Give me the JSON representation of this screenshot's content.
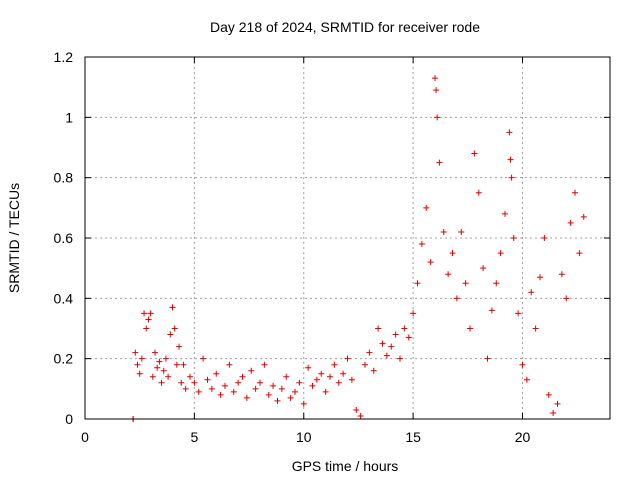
{
  "chart_data": {
    "type": "scatter",
    "title": "Day 218 of 2024, SRMTID for receiver rode",
    "xlabel": "GPS time / hours",
    "ylabel": "SRMTID / TECUs",
    "xlim": [
      0,
      24
    ],
    "ylim": [
      0,
      1.2
    ],
    "xticks": [
      "0",
      "5",
      "10",
      "15",
      "20"
    ],
    "xtick_values": [
      0,
      5,
      10,
      15,
      20
    ],
    "yticks": [
      "0",
      "0.2",
      "0.4",
      "0.6",
      "0.8",
      "1",
      "1.2"
    ],
    "ytick_values": [
      0,
      0.2,
      0.4,
      0.6,
      0.8,
      1.0,
      1.2
    ],
    "grid": true,
    "marker": "plus",
    "color": "#e00000",
    "series": [
      {
        "name": "SRMTID",
        "points": [
          [
            2.2,
            0.0
          ],
          [
            2.2,
            0.0
          ],
          [
            2.3,
            0.22
          ],
          [
            2.4,
            0.18
          ],
          [
            2.5,
            0.15
          ],
          [
            2.6,
            0.2
          ],
          [
            2.7,
            0.35
          ],
          [
            2.8,
            0.3
          ],
          [
            2.9,
            0.33
          ],
          [
            3.0,
            0.35
          ],
          [
            3.1,
            0.14
          ],
          [
            3.2,
            0.22
          ],
          [
            3.3,
            0.17
          ],
          [
            3.4,
            0.19
          ],
          [
            3.5,
            0.12
          ],
          [
            3.6,
            0.16
          ],
          [
            3.7,
            0.2
          ],
          [
            3.8,
            0.14
          ],
          [
            3.9,
            0.28
          ],
          [
            4.0,
            0.37
          ],
          [
            4.1,
            0.3
          ],
          [
            4.2,
            0.18
          ],
          [
            4.3,
            0.24
          ],
          [
            4.4,
            0.12
          ],
          [
            4.5,
            0.18
          ],
          [
            4.6,
            0.1
          ],
          [
            4.8,
            0.14
          ],
          [
            5.0,
            0.12
          ],
          [
            5.2,
            0.09
          ],
          [
            5.4,
            0.2
          ],
          [
            5.6,
            0.13
          ],
          [
            5.8,
            0.1
          ],
          [
            6.0,
            0.15
          ],
          [
            6.2,
            0.08
          ],
          [
            6.4,
            0.11
          ],
          [
            6.6,
            0.18
          ],
          [
            6.8,
            0.09
          ],
          [
            7.0,
            0.12
          ],
          [
            7.2,
            0.14
          ],
          [
            7.4,
            0.07
          ],
          [
            7.6,
            0.16
          ],
          [
            7.8,
            0.1
          ],
          [
            8.0,
            0.12
          ],
          [
            8.2,
            0.18
          ],
          [
            8.4,
            0.08
          ],
          [
            8.6,
            0.11
          ],
          [
            8.8,
            0.06
          ],
          [
            9.0,
            0.1
          ],
          [
            9.2,
            0.14
          ],
          [
            9.4,
            0.07
          ],
          [
            9.6,
            0.09
          ],
          [
            9.8,
            0.12
          ],
          [
            10.0,
            0.05
          ],
          [
            10.2,
            0.17
          ],
          [
            10.4,
            0.11
          ],
          [
            10.6,
            0.13
          ],
          [
            10.8,
            0.15
          ],
          [
            11.0,
            0.09
          ],
          [
            11.2,
            0.14
          ],
          [
            11.4,
            0.18
          ],
          [
            11.6,
            0.12
          ],
          [
            11.8,
            0.15
          ],
          [
            12.0,
            0.2
          ],
          [
            12.2,
            0.13
          ],
          [
            12.4,
            0.03
          ],
          [
            12.6,
            0.01
          ],
          [
            12.8,
            0.18
          ],
          [
            13.0,
            0.22
          ],
          [
            13.2,
            0.16
          ],
          [
            13.4,
            0.3
          ],
          [
            13.6,
            0.25
          ],
          [
            13.8,
            0.21
          ],
          [
            14.0,
            0.24
          ],
          [
            14.2,
            0.28
          ],
          [
            14.4,
            0.2
          ],
          [
            14.6,
            0.3
          ],
          [
            14.8,
            0.27
          ],
          [
            15.0,
            0.35
          ],
          [
            15.2,
            0.45
          ],
          [
            15.4,
            0.58
          ],
          [
            15.6,
            0.7
          ],
          [
            15.8,
            0.52
          ],
          [
            16.0,
            1.13
          ],
          [
            16.05,
            1.09
          ],
          [
            16.1,
            1.0
          ],
          [
            16.2,
            0.85
          ],
          [
            16.4,
            0.62
          ],
          [
            16.6,
            0.48
          ],
          [
            16.8,
            0.55
          ],
          [
            17.0,
            0.4
          ],
          [
            17.2,
            0.62
          ],
          [
            17.4,
            0.45
          ],
          [
            17.6,
            0.3
          ],
          [
            17.8,
            0.88
          ],
          [
            18.0,
            0.75
          ],
          [
            18.2,
            0.5
          ],
          [
            18.4,
            0.2
          ],
          [
            18.6,
            0.36
          ],
          [
            18.8,
            0.45
          ],
          [
            19.0,
            0.55
          ],
          [
            19.2,
            0.68
          ],
          [
            19.4,
            0.95
          ],
          [
            19.45,
            0.86
          ],
          [
            19.5,
            0.8
          ],
          [
            19.6,
            0.6
          ],
          [
            19.8,
            0.35
          ],
          [
            20.0,
            0.18
          ],
          [
            20.2,
            0.13
          ],
          [
            20.4,
            0.42
          ],
          [
            20.6,
            0.3
          ],
          [
            20.8,
            0.47
          ],
          [
            21.0,
            0.6
          ],
          [
            21.2,
            0.08
          ],
          [
            21.4,
            0.02
          ],
          [
            21.6,
            0.05
          ],
          [
            21.8,
            0.48
          ],
          [
            22.0,
            0.4
          ],
          [
            22.2,
            0.65
          ],
          [
            22.4,
            0.75
          ],
          [
            22.6,
            0.55
          ],
          [
            22.8,
            0.67
          ]
        ]
      }
    ]
  }
}
